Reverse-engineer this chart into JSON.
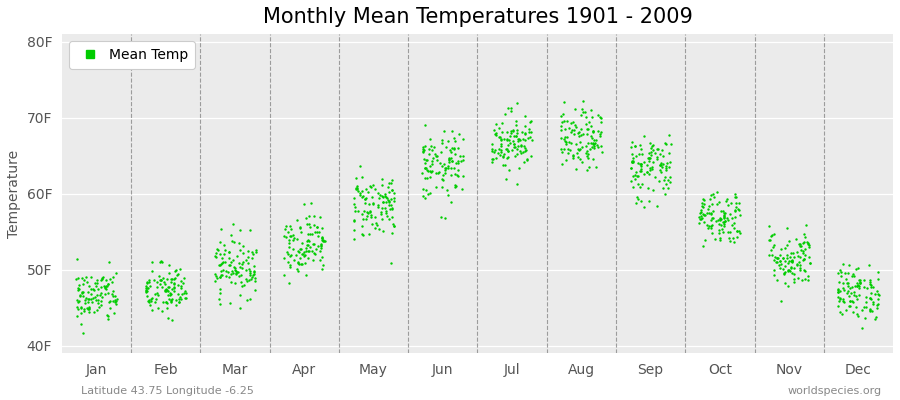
{
  "title": "Monthly Mean Temperatures 1901 - 2009",
  "ylabel": "Temperature",
  "months": [
    "Jan",
    "Feb",
    "Mar",
    "Apr",
    "May",
    "Jun",
    "Jul",
    "Aug",
    "Sep",
    "Oct",
    "Nov",
    "Dec"
  ],
  "ytick_labels": [
    "40F",
    "50F",
    "60F",
    "70F",
    "80F"
  ],
  "ytick_values": [
    40,
    50,
    60,
    70,
    80
  ],
  "ylim": [
    39,
    81
  ],
  "xlim": [
    0,
    12
  ],
  "dot_color": "#00CC00",
  "dot_size": 3,
  "background_color": "#ffffff",
  "plot_bg_color": "#ebebeb",
  "legend_label": "Mean Temp",
  "footer_left": "Latitude 43.75 Longitude -6.25",
  "footer_right": "worldspecies.org",
  "title_fontsize": 15,
  "axis_fontsize": 10,
  "tick_fontsize": 10,
  "footer_fontsize": 8,
  "monthly_means": [
    46.5,
    47.2,
    50.5,
    53.5,
    58.5,
    63.5,
    67.0,
    67.0,
    63.5,
    57.0,
    51.5,
    47.0
  ],
  "monthly_stds": [
    1.8,
    1.8,
    2.0,
    2.0,
    2.2,
    2.3,
    2.0,
    2.0,
    2.3,
    1.8,
    2.0,
    1.8
  ],
  "n_years": 109
}
